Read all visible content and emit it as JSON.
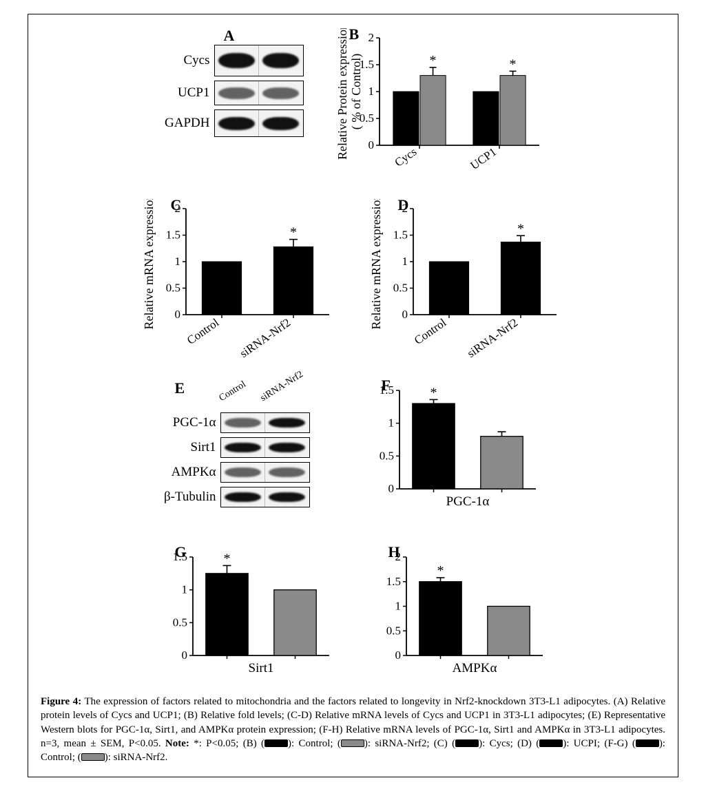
{
  "panelLetters": {
    "A": "A",
    "B": "B",
    "C": "C",
    "D": "D",
    "E": "E",
    "F": "F",
    "G": "G",
    "H": "H"
  },
  "panelA": {
    "rows": [
      "Cycs",
      "UCP1",
      "GAPDH"
    ]
  },
  "panelB": {
    "type": "bar",
    "ylabel_line1": "Relative Protein expression",
    "ylabel_line2": "( % of Control)",
    "ylim": [
      0,
      2
    ],
    "ytick_step": 0.5,
    "yticks": [
      "0",
      "0.5",
      "1",
      "1.5",
      "2"
    ],
    "groups": [
      "Cycs",
      "UCP1"
    ],
    "series": [
      {
        "name": "Control",
        "color": "#000000",
        "values": [
          1.0,
          1.0
        ],
        "errors": [
          0,
          0
        ]
      },
      {
        "name": "siRNA-Nrf2",
        "color": "#8a8a8a",
        "values": [
          1.3,
          1.3
        ],
        "errors": [
          0.15,
          0.08
        ]
      }
    ],
    "sig_marks": [
      1,
      1
    ],
    "bar_width": 0.32,
    "gap": 0.04
  },
  "panelC": {
    "type": "bar",
    "ylabel": "Relative mRNA expression",
    "ylim": [
      0,
      2
    ],
    "ytick_step": 0.5,
    "yticks": [
      "0",
      "0.5",
      "1",
      "1.5",
      "2"
    ],
    "categories": [
      "Control",
      "siRNA-Nrf2"
    ],
    "values": [
      1.0,
      1.28
    ],
    "errors": [
      0,
      0.14
    ],
    "bar_color": "#000000",
    "sig_on": 1
  },
  "panelD": {
    "type": "bar",
    "ylabel": "Relative mRNA expression",
    "ylim": [
      0,
      2
    ],
    "ytick_step": 0.5,
    "yticks": [
      "0",
      "0.5",
      "1",
      "1.5",
      "2"
    ],
    "categories": [
      "Control",
      "siRNA-Nrf2"
    ],
    "values": [
      1.0,
      1.37
    ],
    "errors": [
      0,
      0.12
    ],
    "bar_color": "#000000",
    "sig_on": 1
  },
  "panelE": {
    "col_headers": [
      "Control",
      "siRNA-Nrf2"
    ],
    "rows": [
      "PGC-1α",
      "Sirt1",
      "AMPKα",
      "β-Tubulin"
    ]
  },
  "panelF": {
    "type": "bar",
    "xlabel": "PGC-1α",
    "ylim": [
      0,
      1.5
    ],
    "ytick_step": 0.5,
    "yticks": [
      "0",
      "0.5",
      "1",
      "1.5"
    ],
    "values": [
      1.3,
      0.8
    ],
    "errors": [
      0.06,
      0.07
    ],
    "colors": [
      "#000000",
      "#8a8a8a"
    ],
    "sig_on": 0
  },
  "panelG": {
    "type": "bar",
    "xlabel": "Sirt1",
    "ylim": [
      0,
      1.5
    ],
    "ytick_step": 0.5,
    "yticks": [
      "0",
      "0.5",
      "1",
      "1.5"
    ],
    "values": [
      1.25,
      1.0
    ],
    "errors": [
      0.12,
      0.0
    ],
    "colors": [
      "#000000",
      "#8a8a8a"
    ],
    "sig_on": 0
  },
  "panelH": {
    "type": "bar",
    "xlabel": "AMPKα",
    "ylim": [
      0,
      2
    ],
    "ytick_step": 0.5,
    "yticks": [
      "0",
      "0.5",
      "1",
      "1.5",
      "2"
    ],
    "values": [
      1.5,
      1.0
    ],
    "errors": [
      0.08,
      0.0
    ],
    "colors": [
      "#000000",
      "#8a8a8a"
    ],
    "sig_on": 0
  },
  "caption": {
    "fig_no": "Figure 4:",
    "text1": " The expression of factors related to mitochondria and the factors related to longevity in Nrf2-knockdown 3T3-L1 adipocytes. (A) Relative protein levels of Cycs and UCP1; (B) Relative fold levels; (C-D) Relative mRNA levels of Cycs and UCP1 in 3T3-L1 adipocytes; (E) Representative Western blots for PGC-1α, Sirt1, and AMPKα protein expression; (F-H) Relative mRNA levels of PGC-1α, Sirt1 and AMPKα in 3T3-L1 adipocytes. n=3, mean ± SEM, P<0.05. ",
    "note_label": "Note: ",
    "note_star": "*: P<0.05; ",
    "legend_parts": [
      "(B) (",
      "): Control; (",
      "): siRNA-Nrf2; (C) (",
      "): Cycs; (D) (",
      "): UCPI; (F-G) (",
      "): Control; (",
      "): siRNA-Nrf2."
    ]
  },
  "style": {
    "font": "Times New Roman",
    "axis_color": "#000000",
    "background": "#ffffff"
  }
}
